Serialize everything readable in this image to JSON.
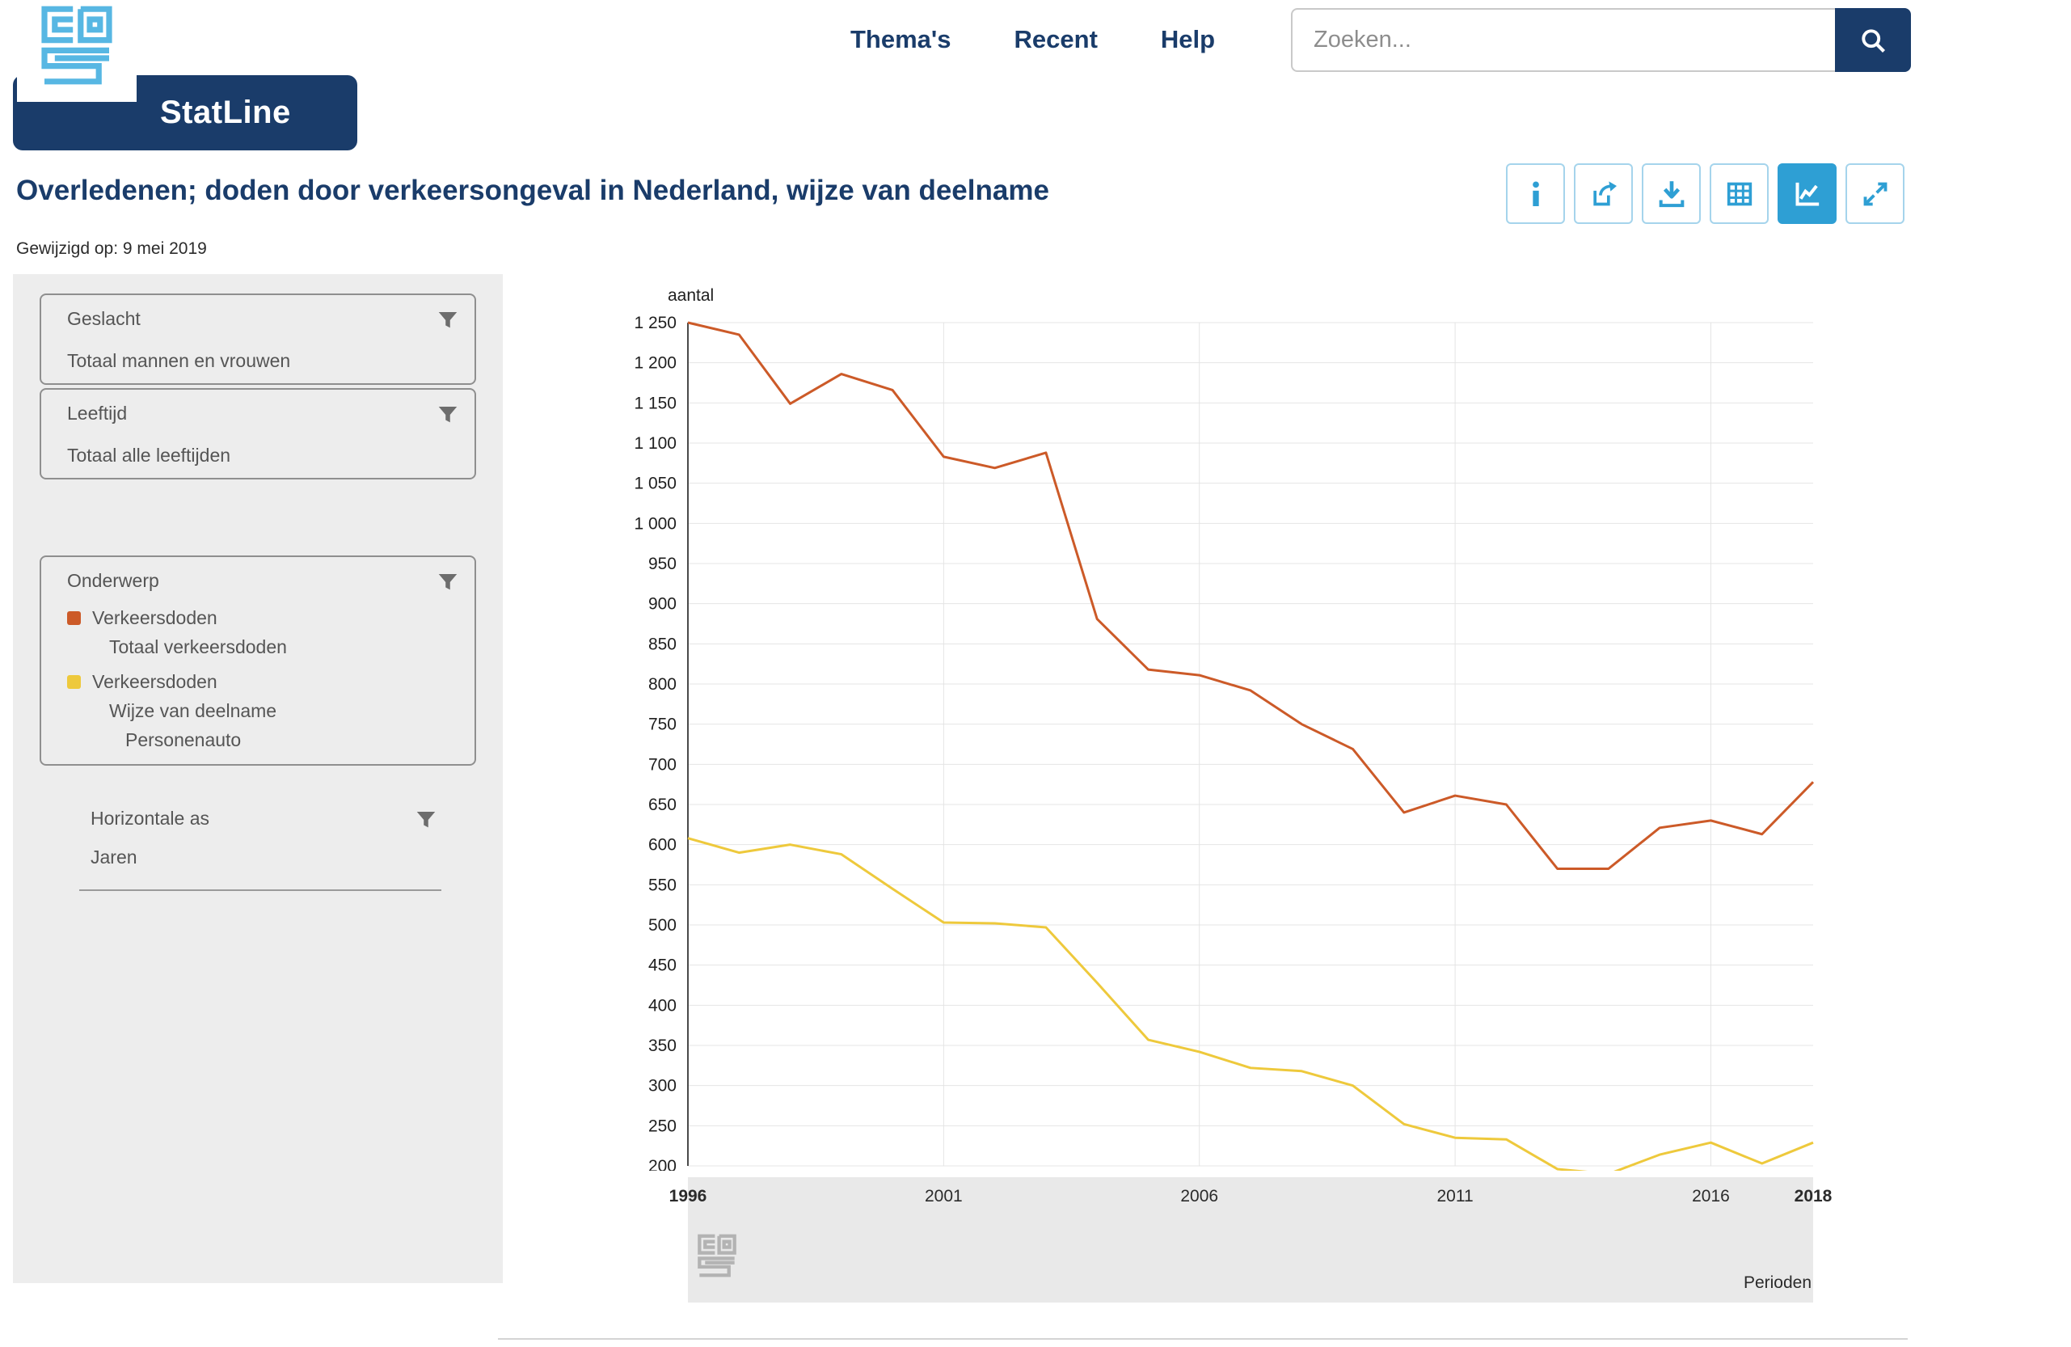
{
  "header": {
    "brand": "StatLine",
    "nav": {
      "themas": "Thema's",
      "recent": "Recent",
      "help": "Help"
    },
    "search": {
      "placeholder": "Zoeken..."
    }
  },
  "page": {
    "title": "Overledenen; doden door verkeersongeval in Nederland, wijze van deelname",
    "modified": "Gewijzigd op: 9 mei 2019"
  },
  "toolbar": {
    "buttons": [
      "info",
      "share",
      "download",
      "table",
      "line-chart",
      "fullscreen"
    ],
    "active": "line-chart",
    "accent_color": "#2e9fd4",
    "brand_color": "#1a3c6a"
  },
  "sidebar": {
    "geslacht": {
      "label": "Geslacht",
      "value": "Totaal mannen en vrouwen"
    },
    "leeftijd": {
      "label": "Leeftijd",
      "value": "Totaal alle leeftijden"
    },
    "onderwerp": {
      "label": "Onderwerp",
      "legend": [
        {
          "color": "#cc5a28",
          "line1": "Verkeersdoden",
          "line2": "Totaal verkeersdoden"
        },
        {
          "color": "#eec93c",
          "line1": "Verkeersdoden",
          "line2": "Wijze van deelname",
          "line3": "Personenauto"
        }
      ]
    },
    "horizontale_as": {
      "label": "Horizontale as",
      "value": "Jaren"
    }
  },
  "chart_data": {
    "type": "line",
    "title": "",
    "ylabel": "aantal",
    "xlabel": "Perioden",
    "ylim": [
      200,
      1250
    ],
    "grid": true,
    "legend_position": "left-sidebar",
    "y_ticks": [
      1250,
      1200,
      1150,
      1100,
      1050,
      1000,
      950,
      900,
      850,
      800,
      750,
      700,
      650,
      600,
      550,
      500,
      450,
      400,
      350,
      300,
      250,
      200
    ],
    "x": [
      1996,
      1997,
      1998,
      1999,
      2000,
      2001,
      2002,
      2003,
      2004,
      2005,
      2006,
      2007,
      2008,
      2009,
      2010,
      2011,
      2012,
      2013,
      2014,
      2015,
      2016,
      2017,
      2018
    ],
    "x_ticks": [
      1996,
      2001,
      2006,
      2011,
      2016,
      2018
    ],
    "x_ticks_bold": [
      1996,
      2018
    ],
    "x_gridlines": [
      2001,
      2006,
      2011,
      2016
    ],
    "series": [
      {
        "id": "totaal-verkeersdoden",
        "name": "Verkeersdoden - Totaal verkeersdoden",
        "color": "#cc5a28",
        "values": [
          1250,
          1235,
          1149,
          1186,
          1166,
          1083,
          1069,
          1088,
          881,
          818,
          811,
          792,
          750,
          719,
          640,
          661,
          650,
          570,
          570,
          621,
          630,
          613,
          678
        ]
      },
      {
        "id": "personenauto",
        "name": "Verkeersdoden - Wijze van deelname - Personenauto",
        "color": "#eec93c",
        "values": [
          608,
          590,
          600,
          588,
          545,
          503,
          502,
          497,
          428,
          357,
          342,
          322,
          318,
          300,
          252,
          235,
          233,
          196,
          190,
          214,
          229,
          203,
          229
        ]
      }
    ]
  }
}
